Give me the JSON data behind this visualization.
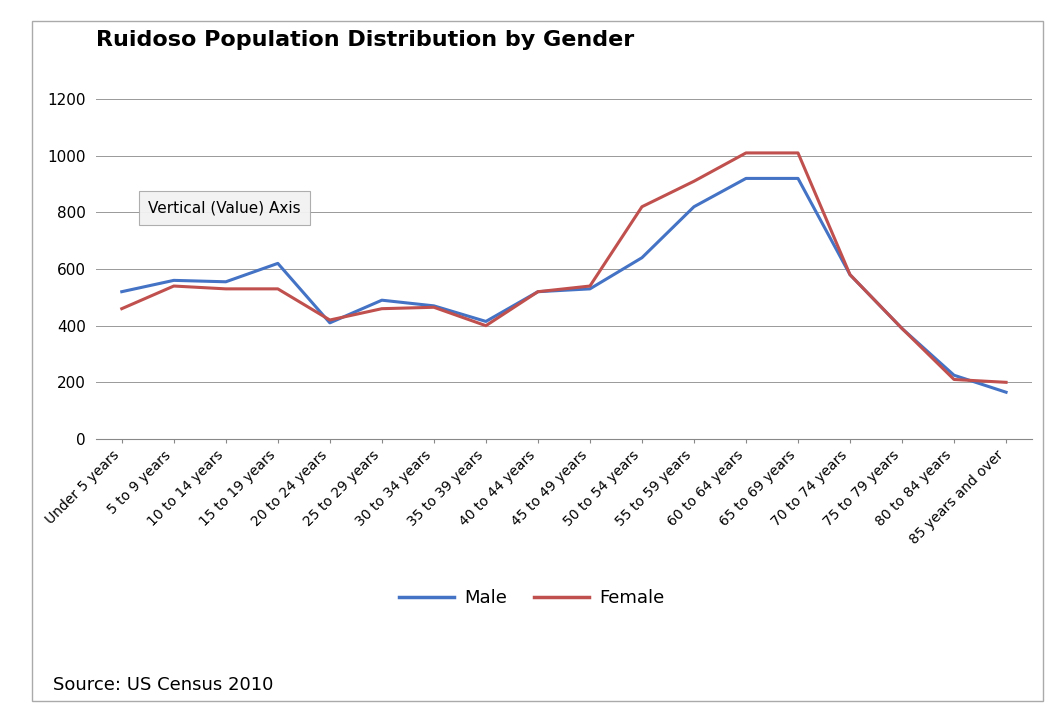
{
  "title": "Ruidoso Population Distribution by Gender",
  "source": "Source: US Census 2010",
  "categories": [
    "Under 5 years",
    "5 to 9 years",
    "10 to 14 years",
    "15 to 19 years",
    "20 to 24 years",
    "25 to 29 years",
    "30 to 34 years",
    "35 to 39 years",
    "40 to 44 years",
    "45 to 49 years",
    "50 to 54 years",
    "55 to 59 years",
    "60 to 64 years",
    "65 to 69 years",
    "70 to 74 years",
    "75 to 79 years",
    "80 to 84 years",
    "85 years and over"
  ],
  "male": [
    520,
    560,
    555,
    620,
    410,
    490,
    470,
    415,
    520,
    530,
    640,
    820,
    920,
    920,
    580,
    390,
    225,
    165
  ],
  "female": [
    460,
    540,
    530,
    530,
    420,
    460,
    465,
    400,
    520,
    540,
    820,
    910,
    1010,
    1010,
    580,
    390,
    210,
    200
  ],
  "male_color": "#4472C4",
  "female_color": "#C0504D",
  "ylim": [
    0,
    1300
  ],
  "yticks": [
    0,
    200,
    400,
    600,
    800,
    1000,
    1200
  ],
  "title_fontsize": 16,
  "axis_fontsize": 10,
  "legend_fontsize": 13,
  "source_fontsize": 13,
  "tooltip_text": "Vertical (Value) Axis",
  "background_color": "#FFFFFF",
  "grid_color": "#999999",
  "spine_color": "#888888"
}
